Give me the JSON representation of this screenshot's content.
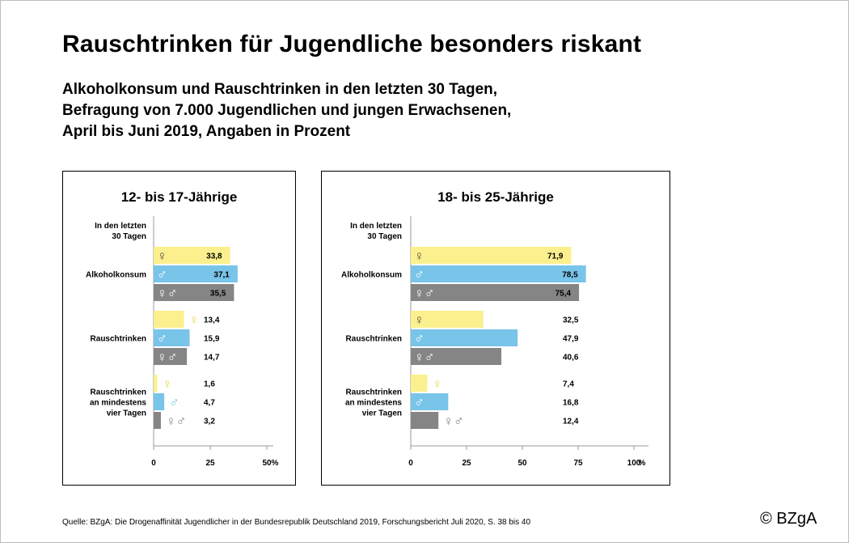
{
  "title": "Rauschtrinken für Jugendliche besonders riskant",
  "subtitle_lines": [
    "Alkoholkonsum und Rauschtrinken in den letzten 30 Tagen,",
    "Befragung von 7.000 Jugendlichen und jungen Erwachsenen,",
    "April bis Juni 2019, Angaben in Prozent"
  ],
  "source": "Quelle: BZgA: Die Drogenaffinität Jugendlicher in der Bundesrepublik Deutschland 2019, Forschungsbericht Juli 2020, S. 38 bis 40",
  "copyright": "© BZgA",
  "colors": {
    "female": "#fbf08d",
    "male": "#79c4e9",
    "total": "#858585",
    "axis": "#999999"
  },
  "chart_data": [
    {
      "type": "bar",
      "orientation": "horizontal",
      "title": "12- bis 17-Jährige",
      "header_label": [
        "In den letzten",
        "30 Tagen"
      ],
      "groups": [
        {
          "label": [
            "Alkoholkonsum"
          ],
          "values": [
            33.8,
            37.1,
            35.5
          ],
          "value_labels": [
            "33,8",
            "37,1",
            "35,5"
          ]
        },
        {
          "label": [
            "Rauschtrinken"
          ],
          "values": [
            13.4,
            15.9,
            14.7
          ],
          "value_labels": [
            "13,4",
            "15,9",
            "14,7"
          ]
        },
        {
          "label": [
            "Rauschtrinken",
            "an mindestens",
            "vier Tagen"
          ],
          "values": [
            1.6,
            4.7,
            3.2
          ],
          "value_labels": [
            "1,6",
            "4,7",
            "3,2"
          ]
        }
      ],
      "series_symbols": [
        "♀",
        "♂",
        "♀♂"
      ],
      "xlim": [
        0,
        50
      ],
      "ticks": [
        0,
        25,
        50
      ],
      "tick_labels": [
        "0",
        "25",
        "50"
      ],
      "unit": "%"
    },
    {
      "type": "bar",
      "orientation": "horizontal",
      "title": "18- bis 25-Jährige",
      "header_label": [
        "In den letzten",
        "30 Tagen"
      ],
      "groups": [
        {
          "label": [
            "Alkoholkonsum"
          ],
          "values": [
            71.9,
            78.5,
            75.4
          ],
          "value_labels": [
            "71,9",
            "78,5",
            "75,4"
          ]
        },
        {
          "label": [
            "Rauschtrinken"
          ],
          "values": [
            32.5,
            47.9,
            40.6
          ],
          "value_labels": [
            "32,5",
            "47,9",
            "40,6"
          ]
        },
        {
          "label": [
            "Rauschtrinken",
            "an mindestens",
            "vier Tagen"
          ],
          "values": [
            7.4,
            16.8,
            12.4
          ],
          "value_labels": [
            "7,4",
            "16,8",
            "12,4"
          ]
        }
      ],
      "series_symbols": [
        "♀",
        "♂",
        "♀♂"
      ],
      "xlim": [
        0,
        100
      ],
      "ticks": [
        0,
        25,
        50,
        75,
        100
      ],
      "tick_labels": [
        "0",
        "25",
        "50",
        "75",
        "100"
      ],
      "unit": "%"
    }
  ]
}
